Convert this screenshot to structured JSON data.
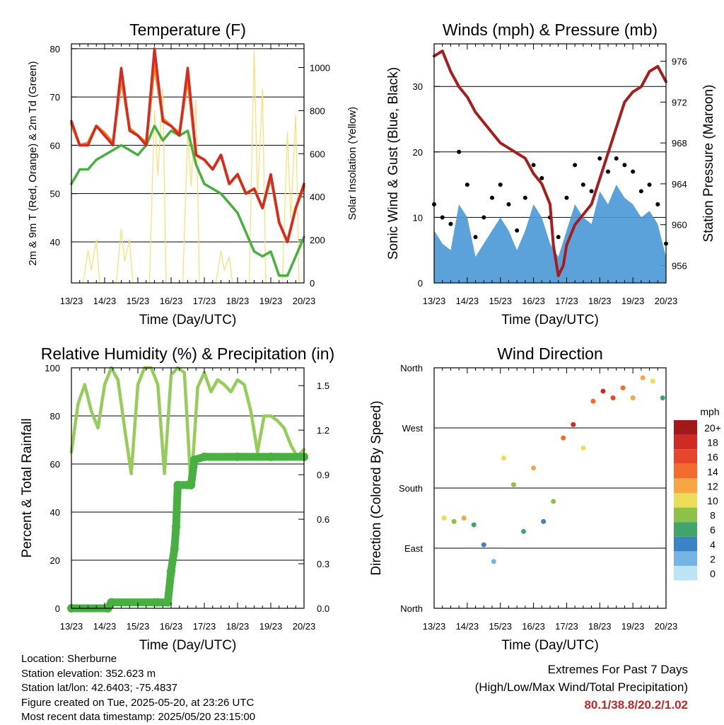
{
  "colors": {
    "temp_red": "#d42a1f",
    "temp_orange": "#f0812b",
    "dewpoint_green": "#48b040",
    "solar_yellow": "#f8e07a",
    "pressure_maroon": "#a51e1e",
    "wind_blue": "#4a98d6",
    "gust_black": "#000000",
    "rh_light_green": "#96cd5a",
    "precip_green": "#48b040",
    "extremes_red": "#c0282c"
  },
  "chart_data": [
    {
      "id": "temperature",
      "type": "line",
      "title": "Temperature (F)",
      "xlabel": "Time (Day/UTC)",
      "ylabel": "2m & 9m T (Red, Orange) & 2m Td (Green)",
      "y2label": "Solar Insolation (Yellow)",
      "x_ticks": [
        "13/23",
        "14/23",
        "15/23",
        "16/23",
        "17/23",
        "18/23",
        "19/23",
        "20/23"
      ],
      "ylim": [
        31.5,
        81
      ],
      "y_ticks": [
        40,
        50,
        60,
        70,
        80
      ],
      "y2lim": [
        0,
        1110
      ],
      "y2_ticks": [
        0,
        200,
        400,
        600,
        800,
        1000
      ],
      "xlim": [
        0,
        7
      ],
      "series": [
        {
          "key": "t2m",
          "color": "#d42a1f",
          "x": [
            0,
            0.25,
            0.5,
            0.75,
            1,
            1.25,
            1.5,
            1.75,
            2,
            2.25,
            2.5,
            2.75,
            3,
            3.25,
            3.5,
            3.75,
            4,
            4.25,
            4.5,
            4.75,
            5,
            5.25,
            5.5,
            5.75,
            6,
            6.25,
            6.5,
            6.75,
            7
          ],
          "values": [
            65,
            60,
            60,
            64,
            62,
            60,
            76,
            63,
            62,
            60,
            80,
            65,
            64,
            62,
            76,
            58,
            57,
            55,
            58,
            52,
            54,
            50,
            51,
            47,
            54,
            44,
            40,
            47,
            52
          ]
        },
        {
          "key": "t9m",
          "color": "#f0812b",
          "x": [
            0,
            0.25,
            0.5,
            0.75,
            1,
            1.25,
            1.5,
            1.75,
            2,
            2.25,
            2.5,
            2.75,
            3,
            3.25,
            3.5,
            3.75,
            4,
            4.25,
            4.5,
            4.75,
            5,
            5.25,
            5.5,
            5.75,
            6,
            6.25,
            6.5,
            6.75,
            7
          ],
          "values": [
            64.5,
            60,
            60.5,
            64,
            62.5,
            60.5,
            74,
            63.5,
            62,
            60.5,
            77,
            65.5,
            64,
            62.5,
            74,
            58,
            57,
            55,
            58,
            52,
            54,
            50,
            51,
            47,
            53.5,
            44,
            40,
            47,
            51.5
          ]
        },
        {
          "key": "td2m",
          "color": "#48b040",
          "x": [
            0,
            0.25,
            0.5,
            0.75,
            1,
            1.25,
            1.5,
            1.75,
            2,
            2.25,
            2.5,
            2.75,
            3,
            3.25,
            3.5,
            3.75,
            4,
            4.25,
            4.5,
            4.75,
            5,
            5.25,
            5.5,
            5.75,
            6,
            6.25,
            6.5,
            6.75,
            7
          ],
          "values": [
            52,
            55,
            55,
            57,
            58,
            59,
            60,
            59,
            58,
            60,
            64,
            61,
            63,
            62,
            63,
            56,
            52,
            51,
            50,
            48,
            46,
            42,
            38,
            37,
            38,
            33,
            33,
            37,
            41
          ]
        },
        {
          "key": "solar",
          "color": "#f8e07a",
          "axis": "right",
          "x": [
            0.35,
            0.5,
            0.6,
            0.75,
            0.85,
            1.35,
            1.5,
            1.6,
            1.75,
            1.85,
            2.35,
            2.5,
            2.6,
            2.75,
            2.85,
            3.35,
            3.5,
            3.6,
            3.75,
            3.85,
            4.35,
            4.5,
            4.6,
            4.75,
            4.85,
            5.35,
            5.5,
            5.6,
            5.75,
            5.85,
            6.35,
            6.5,
            6.6,
            6.75,
            6.85
          ],
          "values": [
            0,
            150,
            60,
            200,
            0,
            0,
            250,
            100,
            200,
            0,
            0,
            800,
            500,
            900,
            0,
            0,
            700,
            450,
            850,
            0,
            0,
            150,
            60,
            120,
            0,
            0,
            1080,
            400,
            900,
            0,
            0,
            700,
            300,
            780,
            0
          ]
        }
      ]
    },
    {
      "id": "winds",
      "type": "scatter",
      "title": "Winds (mph) & Pressure (mb)",
      "xlabel": "Time (Day/UTC)",
      "ylabel": "Sonic Wind & Gust (Blue, Black)",
      "y2label": "Station Pressure (Maroon)",
      "x_ticks": [
        "13/23",
        "14/23",
        "15/23",
        "16/23",
        "17/23",
        "18/23",
        "19/23",
        "20/23"
      ],
      "ylim": [
        0,
        36.5
      ],
      "y_ticks": [
        0,
        10,
        20,
        30
      ],
      "y2lim": [
        954.3,
        977.7
      ],
      "y2_ticks": [
        956,
        960,
        964,
        968,
        972,
        976
      ],
      "xlim": [
        0,
        7
      ],
      "series": [
        {
          "key": "pressure",
          "color": "#a51e1e",
          "x": [
            0,
            0.25,
            0.5,
            0.75,
            1,
            1.25,
            1.5,
            1.75,
            2,
            2.25,
            2.5,
            2.75,
            3,
            3.25,
            3.5,
            3.6,
            3.75,
            3.9,
            4,
            4.25,
            4.5,
            4.75,
            5,
            5.25,
            5.5,
            5.75,
            6,
            6.25,
            6.5,
            6.75,
            7
          ],
          "values": [
            976.5,
            977,
            975,
            973.5,
            972.5,
            971,
            970,
            969,
            968,
            967.5,
            967,
            966.5,
            965,
            964,
            962,
            958,
            955,
            956,
            958,
            960,
            961,
            962,
            964.5,
            967,
            969.5,
            972,
            973,
            973.5,
            975,
            975.5,
            974
          ]
        },
        {
          "key": "wind",
          "color": "#4a98d6",
          "x": [
            0,
            0.25,
            0.5,
            0.75,
            1,
            1.25,
            1.5,
            1.75,
            2,
            2.25,
            2.5,
            2.75,
            3,
            3.25,
            3.5,
            3.75,
            4,
            4.25,
            4.5,
            4.75,
            5,
            5.25,
            5.5,
            5.75,
            6,
            6.25,
            6.5,
            6.75,
            7
          ],
          "values": [
            8,
            6,
            5,
            12,
            10,
            4,
            6,
            8,
            10,
            8,
            5,
            8,
            12,
            10,
            6,
            4,
            8,
            12,
            10,
            9,
            14,
            12,
            15,
            13,
            12,
            10,
            11,
            9,
            4
          ]
        },
        {
          "key": "gust",
          "color": "#000000",
          "x": [
            0,
            0.25,
            0.5,
            0.75,
            1,
            1.25,
            1.5,
            1.75,
            2,
            2.25,
            2.5,
            2.75,
            3,
            3.25,
            3.5,
            3.75,
            4,
            4.25,
            4.5,
            4.75,
            5,
            5.25,
            5.5,
            5.75,
            6,
            6.25,
            6.5,
            6.75,
            7
          ],
          "values": [
            12,
            10,
            9,
            20,
            15,
            7,
            10,
            13,
            15,
            12,
            8,
            13,
            18,
            16,
            10,
            7,
            13,
            18,
            15,
            14,
            19,
            17,
            19,
            18,
            17,
            14,
            15,
            12,
            6
          ]
        }
      ]
    },
    {
      "id": "humidity",
      "type": "line",
      "title": "Relative Humidity (%) & Precipitation (in)",
      "xlabel": "Time (Day/UTC)",
      "ylabel": "Percent & Total Rainfall",
      "x_ticks": [
        "13/23",
        "14/23",
        "15/23",
        "16/23",
        "17/23",
        "18/23",
        "19/23",
        "20/23"
      ],
      "ylim": [
        0,
        100
      ],
      "y_ticks": [
        0,
        20,
        40,
        60,
        80,
        100
      ],
      "y2lim": [
        0,
        1.62
      ],
      "y2_ticks": [
        "0.0",
        "0.3",
        "0.6",
        "0.9",
        "1.2",
        "1.5"
      ],
      "xlim": [
        0,
        7
      ],
      "series": [
        {
          "key": "rh",
          "color": "#96cd5a",
          "x": [
            0,
            0.2,
            0.4,
            0.6,
            0.8,
            1,
            1.2,
            1.4,
            1.6,
            1.8,
            2,
            2.2,
            2.4,
            2.6,
            2.8,
            3,
            3.2,
            3.4,
            3.6,
            3.8,
            4,
            4.2,
            4.4,
            4.6,
            4.8,
            5,
            5.2,
            5.4,
            5.6,
            5.8,
            6,
            6.2,
            6.4,
            6.6,
            6.8,
            7
          ],
          "values": [
            65,
            85,
            93,
            82,
            75,
            93,
            100,
            95,
            75,
            56,
            93,
            100,
            100,
            93,
            56,
            97,
            100,
            98,
            50,
            92,
            98,
            90,
            95,
            93,
            90,
            95,
            93,
            82,
            65,
            80,
            80,
            78,
            75,
            68,
            63,
            66
          ]
        },
        {
          "key": "precip",
          "color": "#48b040",
          "axis": "right",
          "x": [
            0,
            1.1,
            1.2,
            2.5,
            2.6,
            2.9,
            3.0,
            3.1,
            3.15,
            3.2,
            3.5,
            3.6,
            3.7,
            4.0,
            5.0,
            6.0,
            7.0
          ],
          "values": [
            0,
            0,
            0.04,
            0.04,
            0.04,
            0.04,
            0.25,
            0.4,
            0.55,
            0.83,
            0.83,
            0.83,
            1.0,
            1.02,
            1.02,
            1.02,
            1.02
          ]
        }
      ]
    },
    {
      "id": "direction",
      "type": "scatter",
      "title": "Wind Direction",
      "xlabel": "Time (Day/UTC)",
      "ylabel": "Direction (Colored By Speed)",
      "x_ticks": [
        "13/23",
        "14/23",
        "15/23",
        "16/23",
        "17/23",
        "18/23",
        "19/23",
        "20/23"
      ],
      "y_ticks": [
        "North",
        "East",
        "South",
        "West",
        "North"
      ],
      "ylim": [
        0,
        360
      ],
      "xlim": [
        0,
        7
      ],
      "legend_title": "mph",
      "legend_labels": [
        "20+",
        "18",
        "16",
        "14",
        "12",
        "10",
        "8",
        "6",
        "4",
        "2",
        "0"
      ],
      "legend_colors": [
        "#a3191b",
        "#cf2a24",
        "#e7462c",
        "#f26b2c",
        "#f7a545",
        "#ecdc58",
        "#8cc24a",
        "#42a36b",
        "#3b83c4",
        "#74b5e6",
        "#bde3f7"
      ],
      "series": [
        {
          "key": "dir",
          "x": [
            0.3,
            0.6,
            0.9,
            1.2,
            1.5,
            1.8,
            2.1,
            2.4,
            2.7,
            3.0,
            3.3,
            3.6,
            3.9,
            4.2,
            4.5,
            4.8,
            5.1,
            5.4,
            5.7,
            6.0,
            6.3,
            6.6,
            6.9
          ],
          "values": [
            135,
            130,
            135,
            125,
            95,
            70,
            225,
            185,
            115,
            210,
            130,
            160,
            255,
            275,
            240,
            310,
            325,
            315,
            330,
            315,
            345,
            340,
            315
          ],
          "speeds": [
            9,
            8,
            11,
            5,
            3,
            2,
            9,
            8,
            6,
            11,
            4,
            7,
            14,
            17,
            10,
            14,
            18,
            16,
            14,
            12,
            11,
            9,
            6
          ]
        }
      ]
    }
  ],
  "info": {
    "location": "Location: Sherburne",
    "elevation": "Station elevation: 352.623 m",
    "latlon": "Station lat/lon: 42.6403; -75.4837",
    "created": "Figure created on Tue, 2025-05-20, at 23:26 UTC",
    "recent": "Most recent data timestamp: 2025/05/20 23:15:00"
  },
  "extremes": {
    "line1": "Extremes For Past 7 Days",
    "line2": "(High/Low/Max Wind/Total Precipitation)",
    "values": "80.1/38.8/20.2/1.02"
  }
}
